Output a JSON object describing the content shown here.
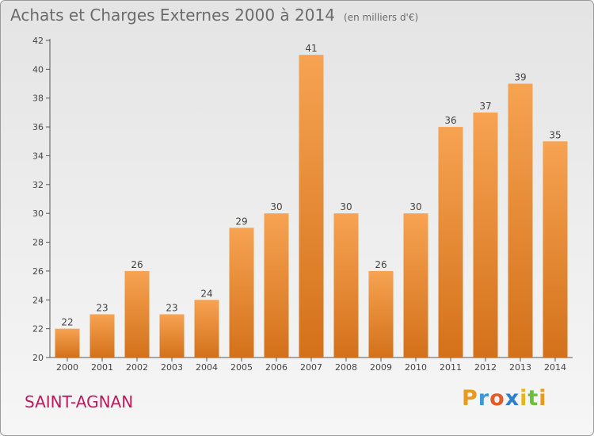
{
  "header": {
    "title": "Achats et Charges Externes 2000 à 2014",
    "unit": "(en milliers d'€)"
  },
  "footer": {
    "commune": "SAINT-AGNAN",
    "brand": "Proxiti"
  },
  "colors": {
    "bar_light": "#f6a352",
    "bar_dark": "#d4711a",
    "commune_text": "#c2185b"
  },
  "chart_data": {
    "type": "bar",
    "title": "Achats et Charges Externes 2000 à 2014",
    "subtitle": "(en milliers d'€)",
    "xlabel": "",
    "ylabel": "",
    "categories": [
      "2000",
      "2001",
      "2002",
      "2003",
      "2004",
      "2005",
      "2006",
      "2007",
      "2008",
      "2009",
      "2010",
      "2011",
      "2012",
      "2013",
      "2014"
    ],
    "values": [
      22,
      23,
      26,
      23,
      24,
      29,
      30,
      41,
      30,
      26,
      30,
      36,
      37,
      39,
      35
    ],
    "ylim": [
      20,
      42
    ],
    "yticks": [
      20,
      22,
      24,
      26,
      28,
      30,
      32,
      34,
      36,
      38,
      40,
      42
    ],
    "grid": false,
    "legend": "none"
  }
}
